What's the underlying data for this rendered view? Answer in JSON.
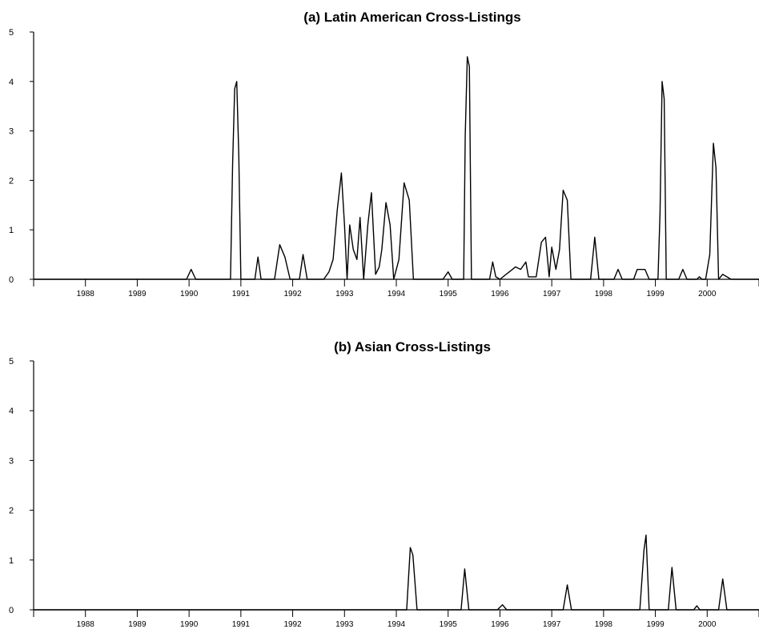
{
  "chart_data": [
    {
      "type": "line",
      "title": "(a) Latin American Cross-Listings",
      "xlabel": "",
      "ylabel": "",
      "ylim": [
        0,
        5
      ],
      "yticks": [
        0,
        1,
        2,
        3,
        4,
        5
      ],
      "xlim": [
        1987.0,
        2001.0
      ],
      "xtick_labels": [
        "1988",
        "1989",
        "1990",
        "1991",
        "1992",
        "1993",
        "1994",
        "1995",
        "1996",
        "1997",
        "1998",
        "1999",
        "2000"
      ],
      "grid": false,
      "series": [
        {
          "x": [
            1987.0,
            1989.95,
            1990.04,
            1990.13,
            1990.8,
            1990.84,
            1990.88,
            1990.92,
            1990.96,
            1991.0,
            1991.27,
            1991.33,
            1991.39,
            1991.65,
            1991.75,
            1991.85,
            1991.95,
            1992.05,
            1992.13,
            1992.2,
            1992.28,
            1992.6,
            1992.7,
            1992.78,
            1992.86,
            1992.94,
            1993.0,
            1993.05,
            1993.1,
            1993.17,
            1993.24,
            1993.3,
            1993.37,
            1993.45,
            1993.52,
            1993.6,
            1993.67,
            1993.72,
            1993.8,
            1993.88,
            1993.95,
            1994.0,
            1994.05,
            1994.15,
            1994.25,
            1994.33,
            1994.4,
            1994.48,
            1994.9,
            1995.0,
            1995.08,
            1995.3,
            1995.33,
            1995.37,
            1995.41,
            1995.45,
            1995.8,
            1995.86,
            1995.92,
            1996.0,
            1996.3,
            1996.4,
            1996.5,
            1996.55,
            1996.62,
            1996.7,
            1996.8,
            1996.88,
            1996.95,
            1997.0,
            1997.08,
            1997.15,
            1997.22,
            1997.3,
            1997.37,
            1997.45,
            1997.75,
            1997.83,
            1997.91,
            1998.2,
            1998.28,
            1998.36,
            1998.58,
            1998.65,
            1998.73,
            1998.8,
            1998.88,
            1999.05,
            1999.09,
            1999.13,
            1999.17,
            1999.21,
            1999.45,
            1999.53,
            1999.61,
            1999.75,
            1999.8,
            1999.85,
            1999.9,
            1999.97,
            2000.05,
            2000.12,
            2000.17,
            2000.22,
            2000.3,
            2000.38,
            2000.46,
            2001.0
          ],
          "values": [
            0,
            0,
            0.2,
            0,
            0,
            2.3,
            3.85,
            4.0,
            2.5,
            0,
            0,
            0.45,
            0,
            0,
            0.7,
            0.45,
            0,
            0,
            0,
            0.5,
            0,
            0,
            0.15,
            0.4,
            1.4,
            2.15,
            1.1,
            0,
            1.1,
            0.6,
            0.4,
            1.25,
            0,
            1.1,
            1.75,
            0.1,
            0.25,
            0.6,
            1.55,
            1.1,
            0,
            0.2,
            0.4,
            1.95,
            1.6,
            0,
            0,
            0,
            0,
            0.15,
            0,
            0,
            2.9,
            4.5,
            4.3,
            0,
            0,
            0.35,
            0.05,
            0,
            0.25,
            0.2,
            0.35,
            0.05,
            0.05,
            0.05,
            0.75,
            0.85,
            0.05,
            0.65,
            0.2,
            0.6,
            1.8,
            1.6,
            0,
            0,
            0,
            0.85,
            0,
            0,
            0.2,
            0,
            0,
            0.2,
            0.2,
            0.2,
            0,
            0,
            1.35,
            4.0,
            3.65,
            0,
            0,
            0.2,
            0,
            0,
            0,
            0.05,
            0,
            0,
            0.5,
            2.75,
            2.25,
            0,
            0.1,
            0.05,
            0,
            0
          ]
        }
      ]
    },
    {
      "type": "line",
      "title": "(b) Asian Cross-Listings",
      "xlabel": "",
      "ylabel": "",
      "ylim": [
        0,
        5
      ],
      "yticks": [
        0,
        1,
        2,
        3,
        4,
        5
      ],
      "xlim": [
        1987.0,
        2001.0
      ],
      "xtick_labels": [
        "1988",
        "1989",
        "1990",
        "1991",
        "1992",
        "1993",
        "1994",
        "1995",
        "1996",
        "1997",
        "1998",
        "1999",
        "2000"
      ],
      "grid": false,
      "series": [
        {
          "x": [
            1987.0,
            1994.2,
            1994.27,
            1994.32,
            1994.4,
            1995.25,
            1995.32,
            1995.4,
            1995.95,
            1996.05,
            1996.13,
            1997.22,
            1997.3,
            1997.38,
            1998.7,
            1998.78,
            1998.82,
            1998.88,
            1999.25,
            1999.32,
            1999.4,
            1999.74,
            1999.8,
            1999.86,
            2000.22,
            2000.3,
            2000.38,
            2001.0
          ],
          "values": [
            0,
            0,
            1.25,
            1.1,
            0,
            0,
            0.82,
            0,
            0,
            0.1,
            0,
            0,
            0.5,
            0,
            0,
            1.2,
            1.5,
            0,
            0,
            0.85,
            0,
            0,
            0.08,
            0,
            0,
            0.62,
            0,
            0
          ]
        }
      ]
    }
  ]
}
